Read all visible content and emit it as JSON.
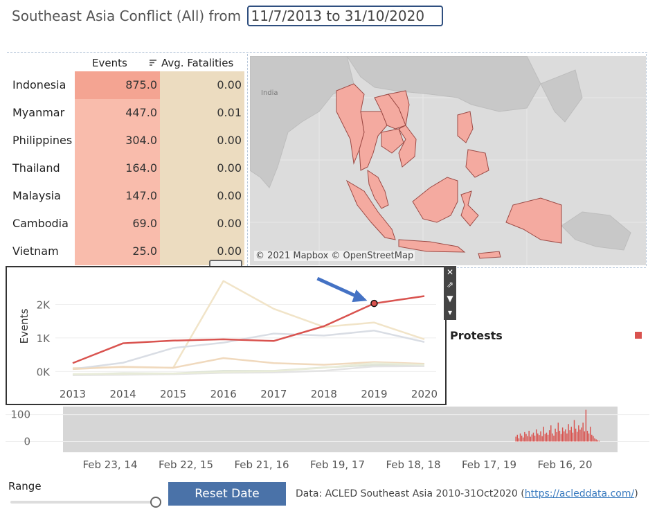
{
  "title": {
    "prefix": "Southeast Asia Conflict (All) from",
    "date_range": "11/7/2013 to 31/10/2020"
  },
  "table": {
    "headers": {
      "events": "Events",
      "fatalities": "Avg. Fatalities"
    },
    "rows": [
      {
        "country": "Indonesia",
        "events": "875.0",
        "fatalities": "0.00"
      },
      {
        "country": "Myanmar",
        "events": "447.0",
        "fatalities": "0.01"
      },
      {
        "country": "Philippines",
        "events": "304.0",
        "fatalities": "0.00"
      },
      {
        "country": "Thailand",
        "events": "164.0",
        "fatalities": "0.00"
      },
      {
        "country": "Malaysia",
        "events": "147.0",
        "fatalities": "0.00"
      },
      {
        "country": "Cambodia",
        "events": "69.0",
        "fatalities": "0.00"
      },
      {
        "country": "Vietnam",
        "events": "25.0",
        "fatalities": "0.00"
      }
    ]
  },
  "map": {
    "credit": "© 2021 Mapbox © OpenStreetMap",
    "label_india": "India",
    "highlight_color": "#f4aaa0"
  },
  "legend": {
    "label": "Protests",
    "color": "#d9534f"
  },
  "chart_data": [
    {
      "type": "line",
      "title": "",
      "xlabel": "",
      "ylabel": "Events",
      "x": [
        2013,
        2014,
        2015,
        2016,
        2017,
        2018,
        2019,
        2020
      ],
      "ylim": [
        -200,
        2900
      ],
      "y_ticks": [
        "0K",
        "1K",
        "2K"
      ],
      "highlight_point": {
        "x": 2019,
        "y": 2030
      },
      "series": [
        {
          "name": "Protests",
          "color": "#d9534f",
          "highlight": true,
          "values": [
            250,
            840,
            920,
            960,
            910,
            1350,
            2030,
            2250
          ]
        },
        {
          "color": "#f1e4c8",
          "values": [
            100,
            130,
            110,
            2700,
            1870,
            1330,
            1460,
            960
          ]
        },
        {
          "color": "#d9dde4",
          "values": [
            70,
            260,
            700,
            860,
            1130,
            1070,
            1220,
            880
          ]
        },
        {
          "color": "#f0d9bd",
          "values": [
            70,
            140,
            110,
            400,
            250,
            200,
            280,
            230
          ]
        },
        {
          "color": "#dde3d6",
          "values": [
            -100,
            -50,
            -60,
            20,
            20,
            120,
            190,
            210
          ]
        },
        {
          "color": "#e3e3e3",
          "values": [
            -110,
            -100,
            -80,
            -40,
            -30,
            20,
            150,
            160
          ]
        },
        {
          "color": "#e9ecd9",
          "values": [
            -80,
            -70,
            -60,
            -20,
            10,
            110,
            250,
            200
          ]
        }
      ]
    },
    {
      "type": "bar",
      "title": "",
      "xlabel": "",
      "ylabel": "",
      "ylim": [
        -40,
        130
      ],
      "y_ticks": [
        "100",
        "0"
      ],
      "x_tick_labels": [
        "Feb 23, 14",
        "Feb 22, 15",
        "Feb 21, 16",
        "Feb 19, 17",
        "Feb 18, 18",
        "Feb 17, 19",
        "Feb 16, 20"
      ],
      "series": [
        {
          "name": "Protests",
          "color": "#d9534f",
          "start_week": 310,
          "total_weeks": 380,
          "values": [
            18,
            25,
            12,
            30,
            22,
            15,
            35,
            28,
            20,
            40,
            18,
            26,
            33,
            22,
            45,
            30,
            24,
            38,
            20,
            55,
            28,
            33,
            25,
            42,
            60,
            30,
            22,
            48,
            35,
            70,
            40,
            28,
            52,
            38,
            45,
            30,
            65,
            42,
            55,
            33,
            80,
            48,
            36,
            60,
            44,
            52,
            70,
            38,
            118,
            40,
            30,
            55,
            25,
            20,
            12,
            8,
            5,
            3
          ]
        }
      ]
    }
  ],
  "controls": {
    "range_label": "Range",
    "reset_button": "Reset Date",
    "source_text": "Data: ACLED Southeast Asia 2010-31Oct2020 (",
    "source_link": "https://acleddata.com/",
    "source_close": ")"
  }
}
